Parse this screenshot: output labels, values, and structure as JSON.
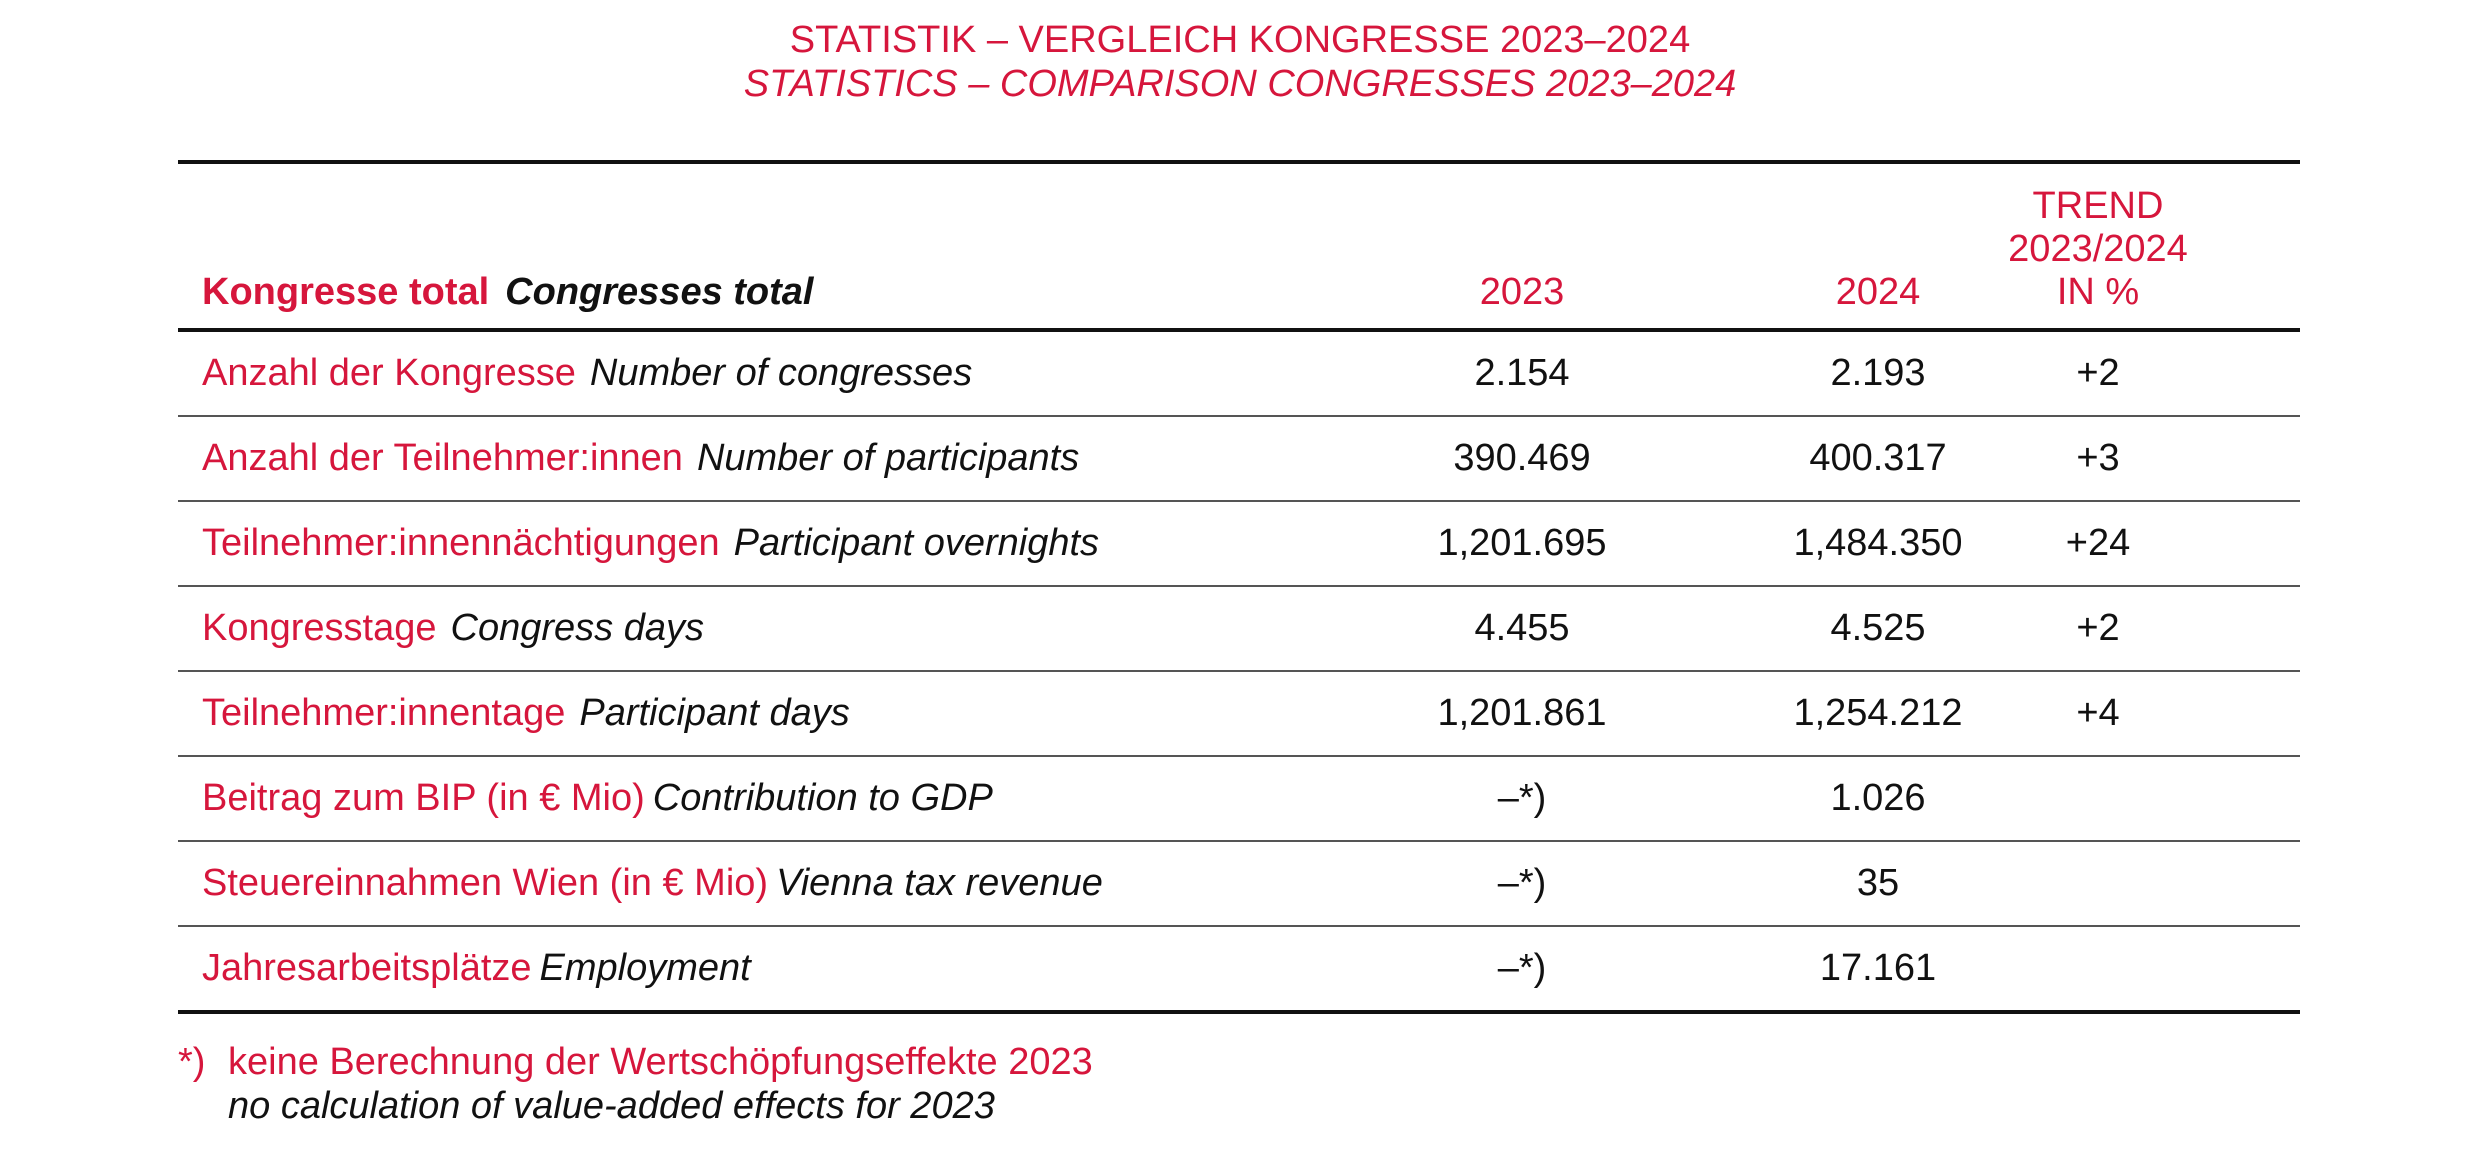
{
  "title": {
    "de": "STATISTIK – VERGLEICH KONGRESSE 2023–2024",
    "en": "STATISTICS – COMPARISON CONGRESSES 2023–2024"
  },
  "colors": {
    "accent": "#d6163c",
    "text": "#111111"
  },
  "table": {
    "header": {
      "label_de": "Kongresse total",
      "label_en": "Congresses total",
      "col_2023": "2023",
      "col_2024": "2024",
      "trend_line1": "TREND",
      "trend_line2": "2023/2024",
      "trend_line3": "IN %"
    },
    "rows": [
      {
        "de": "Anzahl der Kongresse",
        "en": "Number of congresses",
        "v2023": "2.154",
        "v2024": "2.193",
        "trend": "+2"
      },
      {
        "de": "Anzahl der Teilnehmer:innen",
        "en": "Number of participants",
        "v2023": "390.469",
        "v2024": "400.317",
        "trend": "+3"
      },
      {
        "de": "Teilnehmer:innennächtigungen",
        "en": "Participant overnights",
        "v2023": "1,201.695",
        "v2024": "1,484.350",
        "trend": "+24"
      },
      {
        "de": "Kongresstage",
        "en": "Congress days",
        "v2023": "4.455",
        "v2024": "4.525",
        "trend": "+2"
      },
      {
        "de": "Teilnehmer:innentage",
        "en": "Participant days",
        "v2023": "1,201.861",
        "v2024": "1,254.212",
        "trend": "+4"
      },
      {
        "de": "Beitrag zum BIP (in € Mio)",
        "en": "Contribution to GDP",
        "v2023": "–*)",
        "v2024": "1.026",
        "trend": ""
      },
      {
        "de": "Steuereinnahmen Wien (in € Mio)",
        "en": "Vienna tax revenue",
        "v2023": "–*)",
        "v2024": "35",
        "trend": ""
      },
      {
        "de": "Jahresarbeitsplätze",
        "en": "Employment",
        "v2023": "–*)",
        "v2024": "17.161",
        "trend": ""
      }
    ]
  },
  "footnote": {
    "mark": "*)",
    "de": "keine Berechnung der Wertschöpfungseffekte 2023",
    "en": "no calculation of value-added effects for 2023"
  }
}
